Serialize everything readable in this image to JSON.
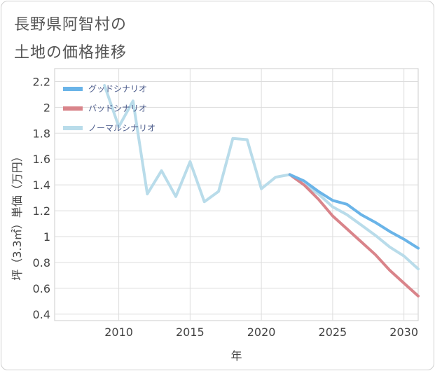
{
  "title": {
    "line1": "長野県阿智村の",
    "line2": "土地の価格推移"
  },
  "chart_data": {
    "type": "line",
    "xlabel": "年",
    "ylabel": "坪（3.3㎡）単価（万円）",
    "xlim": [
      2005.5,
      2031
    ],
    "ylim": [
      0.35,
      2.3
    ],
    "xticks": [
      2010,
      2015,
      2020,
      2025,
      2030
    ],
    "yticks": [
      0.4,
      0.6,
      0.8,
      1,
      1.2,
      1.4,
      1.6,
      1.8,
      2,
      2.2
    ],
    "grid": true,
    "legend_position": "top-left",
    "series": [
      {
        "name": "グッドシナリオ",
        "color": "#6ab4e8",
        "x": [
          2022,
          2023,
          2024,
          2025,
          2026,
          2027,
          2028,
          2029,
          2030,
          2031
        ],
        "y": [
          1.48,
          1.43,
          1.35,
          1.28,
          1.25,
          1.17,
          1.11,
          1.04,
          0.98,
          0.91
        ]
      },
      {
        "name": "バッドシナリオ",
        "color": "#d9848a",
        "x": [
          2022,
          2023,
          2024,
          2025,
          2026,
          2027,
          2028,
          2029,
          2030,
          2031
        ],
        "y": [
          1.48,
          1.4,
          1.29,
          1.16,
          1.06,
          0.96,
          0.86,
          0.74,
          0.64,
          0.54
        ]
      },
      {
        "name": "ノーマルシナリオ",
        "color": "#b9dcea",
        "x": [
          2009,
          2010,
          2011,
          2012,
          2013,
          2014,
          2015,
          2016,
          2017,
          2018,
          2019,
          2020,
          2021,
          2022,
          2023,
          2024,
          2025,
          2026,
          2027,
          2028,
          2029,
          2030,
          2031
        ],
        "y": [
          2.17,
          1.85,
          2.05,
          1.33,
          1.51,
          1.31,
          1.58,
          1.27,
          1.35,
          1.76,
          1.75,
          1.37,
          1.46,
          1.48,
          1.4,
          1.33,
          1.23,
          1.17,
          1.09,
          1.01,
          0.92,
          0.85,
          0.75
        ]
      }
    ]
  }
}
